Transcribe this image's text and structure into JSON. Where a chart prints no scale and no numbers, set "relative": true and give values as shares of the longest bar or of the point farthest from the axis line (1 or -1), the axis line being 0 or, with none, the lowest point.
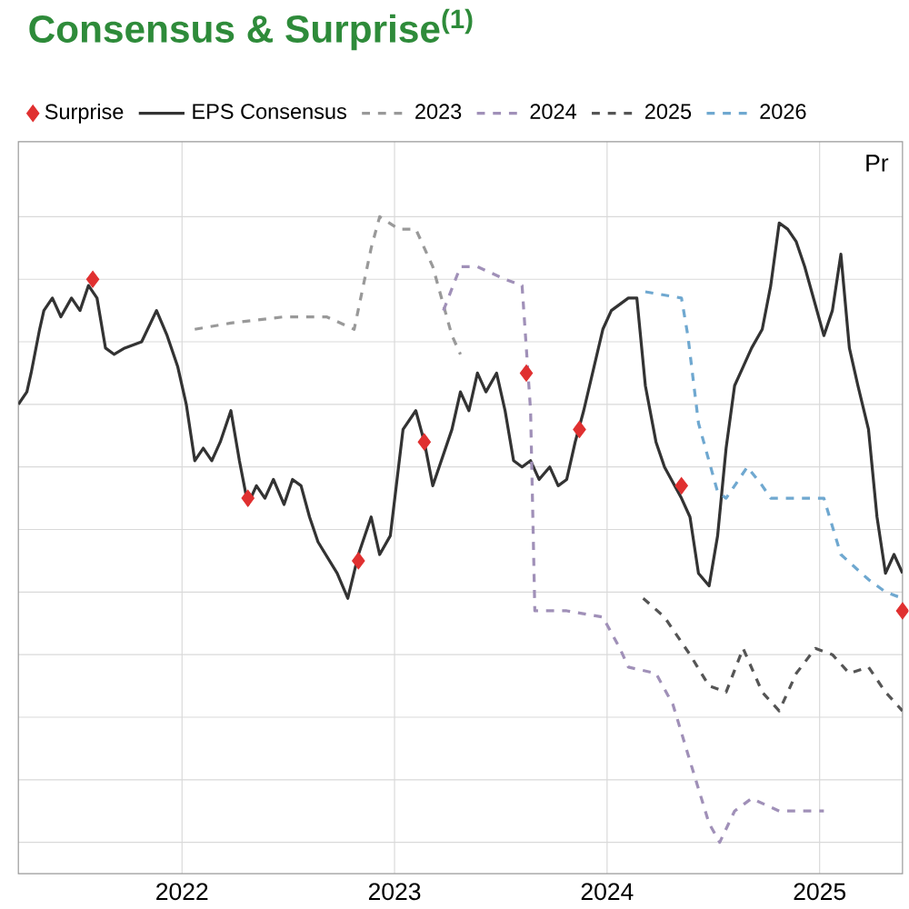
{
  "chart_data": {
    "type": "line",
    "title": "Consensus & Surprise$^{(1)}$",
    "relative": true,
    "xlim": [
      2021.23,
      2025.39
    ],
    "xticks": [
      2022,
      2023,
      2024,
      2025
    ],
    "grid": true,
    "legend": "top",
    "annotations": [
      "Pr"
    ],
    "series": [
      {
        "name": "Surprise",
        "type": "scatter",
        "marker": "diamond",
        "color": "#e03030",
        "x": [
          2021.58,
          2022.31,
          2022.83,
          2023.14,
          2023.62,
          2023.87,
          2024.35,
          2025.39
        ],
        "values": [
          0.9,
          0.55,
          0.45,
          0.64,
          0.75,
          0.66,
          0.57,
          0.37
        ]
      },
      {
        "name": "EPS Consensus",
        "line_style": "solid",
        "color": "#333333",
        "x": [
          2021.23,
          2021.27,
          2021.29,
          2021.33,
          2021.35,
          2021.39,
          2021.43,
          2021.48,
          2021.52,
          2021.56,
          2021.6,
          2021.64,
          2021.68,
          2021.73,
          2021.81,
          2021.88,
          2021.93,
          2021.98,
          2022.02,
          2022.06,
          2022.1,
          2022.14,
          2022.18,
          2022.23,
          2022.27,
          2022.31,
          2022.35,
          2022.39,
          2022.43,
          2022.48,
          2022.52,
          2022.56,
          2022.6,
          2022.64,
          2022.73,
          2022.78,
          2022.83,
          2022.89,
          2022.93,
          2022.98,
          2023.04,
          2023.1,
          2023.14,
          2023.18,
          2023.27,
          2023.31,
          2023.35,
          2023.39,
          2023.43,
          2023.48,
          2023.52,
          2023.56,
          2023.6,
          2023.64,
          2023.68,
          2023.73,
          2023.77,
          2023.81,
          2023.85,
          2023.89,
          2023.98,
          2024.02,
          2024.1,
          2024.14,
          2024.18,
          2024.23,
          2024.27,
          2024.35,
          2024.39,
          2024.43,
          2024.48,
          2024.52,
          2024.56,
          2024.6,
          2024.64,
          2024.68,
          2024.73,
          2024.77,
          2024.81,
          2024.85,
          2024.89,
          2024.93,
          2025.02,
          2025.06,
          2025.1,
          2025.14,
          2025.18,
          2025.23,
          2025.27,
          2025.31,
          2025.35,
          2025.39
        ],
        "values": [
          0.7,
          0.72,
          0.75,
          0.82,
          0.85,
          0.87,
          0.84,
          0.87,
          0.85,
          0.89,
          0.87,
          0.79,
          0.78,
          0.79,
          0.8,
          0.85,
          0.81,
          0.76,
          0.7,
          0.61,
          0.63,
          0.61,
          0.64,
          0.69,
          0.61,
          0.54,
          0.57,
          0.55,
          0.58,
          0.54,
          0.58,
          0.57,
          0.52,
          0.48,
          0.43,
          0.39,
          0.46,
          0.52,
          0.46,
          0.49,
          0.66,
          0.69,
          0.64,
          0.57,
          0.66,
          0.72,
          0.69,
          0.75,
          0.72,
          0.75,
          0.69,
          0.61,
          0.6,
          0.61,
          0.58,
          0.6,
          0.57,
          0.58,
          0.64,
          0.69,
          0.82,
          0.85,
          0.87,
          0.87,
          0.73,
          0.64,
          0.6,
          0.55,
          0.52,
          0.43,
          0.41,
          0.49,
          0.63,
          0.73,
          0.76,
          0.79,
          0.82,
          0.89,
          0.99,
          0.98,
          0.96,
          0.92,
          0.81,
          0.85,
          0.94,
          0.79,
          0.73,
          0.66,
          0.52,
          0.43,
          0.46,
          0.43
        ]
      },
      {
        "name": "2023",
        "line_style": "dashed",
        "color": "#999999",
        "x": [
          2022.06,
          2022.23,
          2022.48,
          2022.68,
          2022.81,
          2022.89,
          2022.93,
          2023.02,
          2023.1,
          2023.18,
          2023.27,
          2023.31
        ],
        "values": [
          0.82,
          0.83,
          0.84,
          0.84,
          0.82,
          0.95,
          1.0,
          0.98,
          0.98,
          0.92,
          0.81,
          0.78
        ]
      },
      {
        "name": "2024",
        "line_style": "dashed",
        "color": "#a090b8",
        "x": [
          2023.23,
          2023.31,
          2023.39,
          2023.52,
          2023.6,
          2023.64,
          2023.66,
          2023.81,
          2023.98,
          2024.06,
          2024.1,
          2024.23,
          2024.31,
          2024.39,
          2024.48,
          2024.53,
          2024.6,
          2024.68,
          2024.81,
          2025.02
        ],
        "values": [
          0.85,
          0.92,
          0.92,
          0.9,
          0.89,
          0.69,
          0.37,
          0.37,
          0.36,
          0.31,
          0.28,
          0.27,
          0.22,
          0.13,
          0.03,
          0,
          0.05,
          0.07,
          0.05,
          0.05
        ]
      },
      {
        "name": "2025",
        "line_style": "dashed",
        "color": "#555555",
        "x": [
          2024.17,
          2024.27,
          2024.39,
          2024.48,
          2024.56,
          2024.64,
          2024.73,
          2024.81,
          2024.89,
          2024.98,
          2025.06,
          2025.14,
          2025.23,
          2025.31,
          2025.39
        ],
        "values": [
          0.39,
          0.36,
          0.3,
          0.25,
          0.24,
          0.31,
          0.24,
          0.21,
          0.27,
          0.31,
          0.3,
          0.27,
          0.28,
          0.24,
          0.21
        ]
      },
      {
        "name": "2026",
        "line_style": "dashed",
        "color": "#6fa8d0",
        "x": [
          2024.18,
          2024.35,
          2024.38,
          2024.43,
          2024.52,
          2024.56,
          2024.66,
          2024.73,
          2024.77,
          2024.89,
          2025.02,
          2025.1,
          2025.23,
          2025.31,
          2025.39
        ],
        "values": [
          0.88,
          0.87,
          0.81,
          0.67,
          0.56,
          0.55,
          0.6,
          0.57,
          0.55,
          0.55,
          0.55,
          0.46,
          0.42,
          0.4,
          0.39
        ]
      }
    ]
  }
}
